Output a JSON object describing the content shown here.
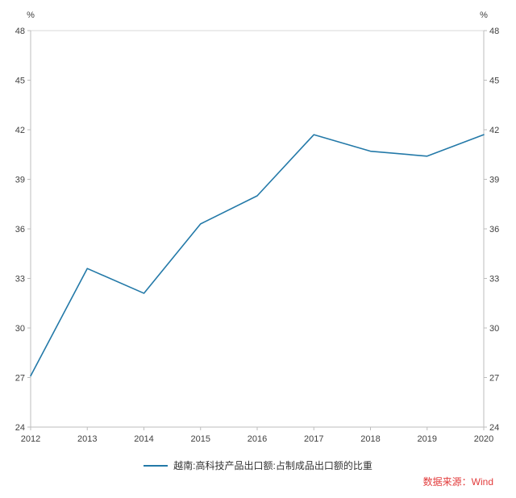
{
  "chart_data": {
    "type": "line",
    "title": "",
    "categories": [
      "2012",
      "2013",
      "2014",
      "2015",
      "2016",
      "2017",
      "2018",
      "2019",
      "2020"
    ],
    "series": [
      {
        "name": "越南:高科技产品出口额:占制成品出口额的比重",
        "values": [
          27.1,
          33.6,
          32.1,
          36.3,
          38.0,
          41.7,
          40.7,
          40.4,
          41.7
        ],
        "color": "#2379a8"
      }
    ],
    "ylim": [
      24,
      48
    ],
    "yticks": [
      24,
      27,
      30,
      33,
      36,
      39,
      42,
      45,
      48
    ],
    "y_unit_left": "%",
    "y_unit_right": "%",
    "grid": false,
    "legend_position": "bottom",
    "axis_color": "#bdbdbd",
    "label_color": "#404040",
    "tick_font_size": 11
  },
  "footer": {
    "source_label": "数据来源：Wind",
    "source_color": "#e23b3b"
  }
}
